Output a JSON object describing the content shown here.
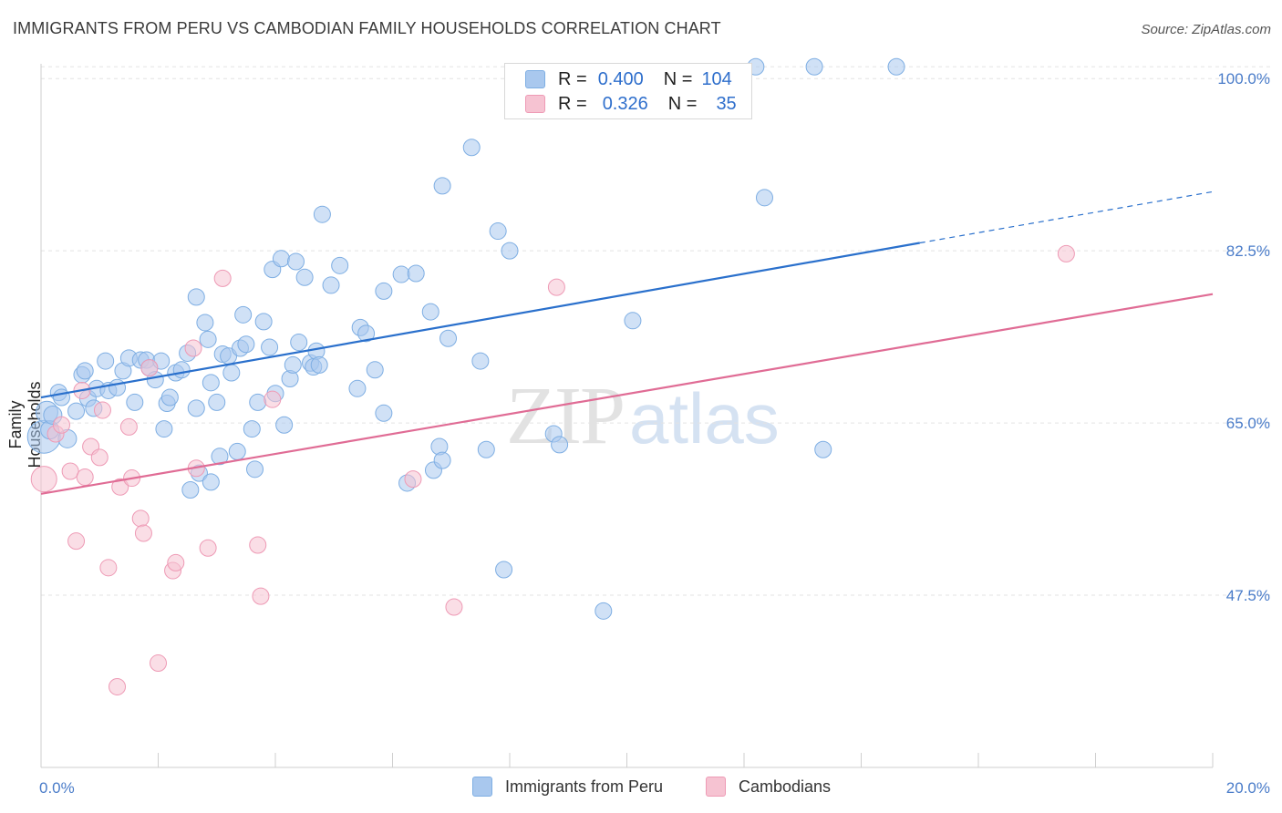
{
  "header": {
    "title": "IMMIGRANTS FROM PERU VS CAMBODIAN FAMILY HOUSEHOLDS CORRELATION CHART",
    "source": "Source: ZipAtlas.com"
  },
  "watermark": {
    "zip": "ZIP",
    "atlas": "atlas"
  },
  "legend": {
    "rows": [
      {
        "r_label": "R =",
        "r_value": "0.400",
        "n_label": "N =",
        "n_value": "104"
      },
      {
        "r_label": "R =",
        "r_value": "0.326",
        "n_label": "N =",
        "n_value": "35"
      }
    ]
  },
  "bottom_legend": {
    "peru": "Immigrants from Peru",
    "cambodians": "Cambodians"
  },
  "colors": {
    "peru_fill": "#a9c8ee",
    "peru_stroke": "#7eaee3",
    "peru_line": "#2a70cc",
    "camb_fill": "#f6c3d2",
    "camb_stroke": "#ee9ab5",
    "camb_line": "#e06c95",
    "tick_label": "#4a7cc9",
    "grid": "#e3e3e3"
  },
  "chart_data": {
    "type": "scatter",
    "title": "IMMIGRANTS FROM PERU VS CAMBODIAN FAMILY HOUSEHOLDS CORRELATION CHART",
    "xlabel": "",
    "ylabel": "Family Households",
    "xlim": [
      0,
      20
    ],
    "ylim": [
      30.0,
      101.5
    ],
    "x_tick_labels": [
      "0.0%",
      "20.0%"
    ],
    "y_ticks": [
      47.5,
      65.0,
      82.5,
      100.0
    ],
    "y_tick_labels": [
      "47.5%",
      "65.0%",
      "82.5%",
      "100.0%"
    ],
    "grid": true,
    "legend_position": "top-center",
    "series": [
      {
        "name": "Immigrants from Peru",
        "r": 0.4,
        "n": 104,
        "trend": {
          "x0": 0.0,
          "y0": 67.6,
          "x1": 15.0,
          "y1": 83.3,
          "dashed_to_x": 20.0,
          "dashed_to_y": 88.5
        },
        "points": [
          [
            0.05,
            63.6,
            18
          ],
          [
            0.1,
            66.1,
            12
          ],
          [
            0.15,
            64.3,
            10
          ],
          [
            0.2,
            65.8,
            10
          ],
          [
            0.3,
            68.1,
            9
          ],
          [
            0.35,
            67.6,
            9
          ],
          [
            0.45,
            63.4,
            10
          ],
          [
            0.6,
            66.2,
            9
          ],
          [
            0.7,
            69.9,
            9
          ],
          [
            0.75,
            70.3,
            9
          ],
          [
            0.8,
            67.5,
            9
          ],
          [
            0.9,
            66.5,
            9
          ],
          [
            0.95,
            68.5,
            9
          ],
          [
            1.1,
            71.3,
            9
          ],
          [
            1.15,
            68.3,
            9
          ],
          [
            1.3,
            68.6,
            9
          ],
          [
            1.4,
            70.3,
            9
          ],
          [
            1.5,
            71.6,
            9
          ],
          [
            1.6,
            67.1,
            9
          ],
          [
            1.7,
            71.4,
            9
          ],
          [
            1.8,
            71.4,
            9
          ],
          [
            1.85,
            70.6,
            9
          ],
          [
            1.95,
            69.4,
            9
          ],
          [
            2.05,
            71.3,
            9
          ],
          [
            2.1,
            64.4,
            9
          ],
          [
            2.15,
            67.0,
            9
          ],
          [
            2.2,
            67.6,
            9
          ],
          [
            2.3,
            70.1,
            9
          ],
          [
            2.4,
            70.4,
            9
          ],
          [
            2.5,
            72.1,
            9
          ],
          [
            2.55,
            58.2,
            9
          ],
          [
            2.65,
            77.8,
            9
          ],
          [
            2.7,
            59.9,
            9
          ],
          [
            2.65,
            66.5,
            9
          ],
          [
            2.8,
            75.2,
            9
          ],
          [
            2.85,
            73.5,
            9
          ],
          [
            2.9,
            69.1,
            9
          ],
          [
            2.9,
            59.0,
            9
          ],
          [
            3.0,
            67.1,
            9
          ],
          [
            3.05,
            61.6,
            9
          ],
          [
            3.1,
            72.0,
            9
          ],
          [
            3.2,
            71.8,
            9
          ],
          [
            3.25,
            70.1,
            9
          ],
          [
            3.35,
            62.1,
            9
          ],
          [
            3.4,
            72.6,
            9
          ],
          [
            3.45,
            76.0,
            9
          ],
          [
            3.5,
            73.0,
            9
          ],
          [
            3.6,
            64.4,
            9
          ],
          [
            3.65,
            60.3,
            9
          ],
          [
            3.7,
            67.1,
            9
          ],
          [
            3.8,
            75.3,
            9
          ],
          [
            3.9,
            72.7,
            9
          ],
          [
            3.95,
            80.6,
            9
          ],
          [
            4.0,
            68.0,
            9
          ],
          [
            4.1,
            81.7,
            9
          ],
          [
            4.15,
            64.8,
            9
          ],
          [
            4.25,
            69.5,
            9
          ],
          [
            4.3,
            70.9,
            9
          ],
          [
            4.35,
            81.4,
            9
          ],
          [
            4.4,
            73.2,
            9
          ],
          [
            4.5,
            79.8,
            9
          ],
          [
            4.6,
            71.1,
            9
          ],
          [
            4.65,
            70.7,
            9
          ],
          [
            4.7,
            72.3,
            9
          ],
          [
            4.75,
            70.9,
            9
          ],
          [
            4.8,
            86.2,
            9
          ],
          [
            4.95,
            79.0,
            9
          ],
          [
            5.1,
            81.0,
            9
          ],
          [
            5.4,
            68.5,
            9
          ],
          [
            5.45,
            74.7,
            9
          ],
          [
            5.55,
            74.1,
            9
          ],
          [
            5.7,
            70.4,
            9
          ],
          [
            5.85,
            78.4,
            9
          ],
          [
            5.85,
            66.0,
            9
          ],
          [
            6.15,
            80.1,
            9
          ],
          [
            6.25,
            58.9,
            9
          ],
          [
            6.4,
            80.2,
            9
          ],
          [
            6.65,
            76.3,
            9
          ],
          [
            6.7,
            60.2,
            9
          ],
          [
            6.8,
            62.6,
            9
          ],
          [
            6.85,
            61.2,
            9
          ],
          [
            6.95,
            73.6,
            9
          ],
          [
            6.85,
            89.1,
            9
          ],
          [
            7.35,
            93.0,
            9
          ],
          [
            7.5,
            71.3,
            9
          ],
          [
            7.6,
            62.3,
            9
          ],
          [
            7.8,
            84.5,
            9
          ],
          [
            7.9,
            50.1,
            9
          ],
          [
            8.0,
            82.5,
            9
          ],
          [
            8.75,
            63.9,
            9
          ],
          [
            8.85,
            62.8,
            9
          ],
          [
            9.6,
            45.9,
            9
          ],
          [
            10.1,
            75.4,
            9
          ],
          [
            12.2,
            101.2,
            9
          ],
          [
            12.35,
            87.9,
            9
          ],
          [
            13.2,
            101.2,
            9
          ],
          [
            13.35,
            62.3,
            9
          ],
          [
            14.6,
            101.2,
            9
          ]
        ]
      },
      {
        "name": "Cambodians",
        "r": 0.326,
        "n": 35,
        "trend": {
          "x0": 0.0,
          "y0": 57.8,
          "x1": 20.0,
          "y1": 78.1
        },
        "points": [
          [
            0.05,
            59.3,
            14
          ],
          [
            0.25,
            63.9,
            9
          ],
          [
            0.35,
            64.8,
            9
          ],
          [
            0.5,
            60.1,
            9
          ],
          [
            0.6,
            53.0,
            9
          ],
          [
            0.7,
            68.3,
            9
          ],
          [
            0.75,
            59.5,
            9
          ],
          [
            0.85,
            62.6,
            9
          ],
          [
            1.0,
            61.5,
            9
          ],
          [
            1.05,
            66.3,
            9
          ],
          [
            1.15,
            50.3,
            9
          ],
          [
            1.3,
            38.2,
            9
          ],
          [
            1.35,
            58.5,
            9
          ],
          [
            1.5,
            64.6,
            9
          ],
          [
            1.55,
            59.4,
            9
          ],
          [
            1.7,
            55.3,
            9
          ],
          [
            1.75,
            53.8,
            9
          ],
          [
            1.85,
            70.6,
            9
          ],
          [
            2.0,
            40.6,
            9
          ],
          [
            2.25,
            50.0,
            9
          ],
          [
            2.3,
            50.8,
            9
          ],
          [
            2.6,
            72.6,
            9
          ],
          [
            2.65,
            60.4,
            9
          ],
          [
            2.85,
            52.3,
            9
          ],
          [
            3.1,
            79.7,
            9
          ],
          [
            3.7,
            52.6,
            9
          ],
          [
            3.75,
            47.4,
            9
          ],
          [
            3.95,
            67.4,
            9
          ],
          [
            6.35,
            59.3,
            9
          ],
          [
            7.05,
            46.3,
            9
          ],
          [
            8.8,
            78.8,
            9
          ],
          [
            17.5,
            82.2,
            9
          ]
        ]
      }
    ]
  }
}
